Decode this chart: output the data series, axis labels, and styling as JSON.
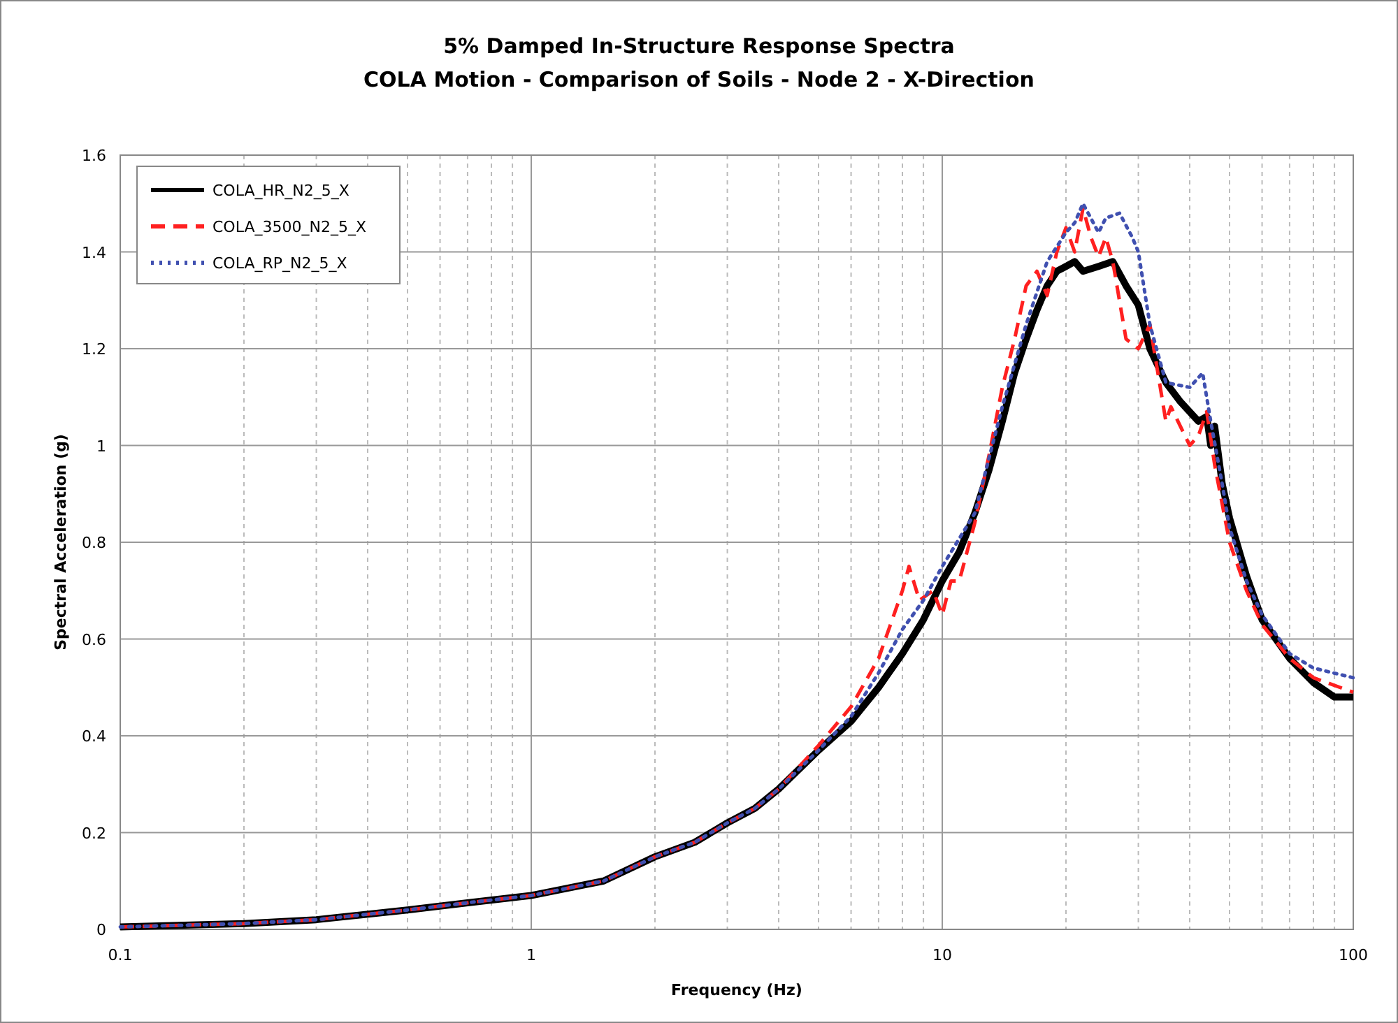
{
  "chart_data": {
    "type": "line",
    "title": "5% Damped In-Structure Response Spectra",
    "subtitle": "COLA Motion - Comparison of Soils - Node 2 - X-Direction",
    "xlabel": "Frequency (Hz)",
    "ylabel": "Spectral Acceleration (g)",
    "log": "x",
    "grid": true,
    "legend": "top left",
    "xlim": [
      0.1,
      100
    ],
    "xticks": [
      0.1,
      1,
      10,
      100
    ],
    "ylim": [
      0,
      1.6
    ],
    "yticks": [
      0,
      0.2,
      0.4,
      0.6,
      0.8,
      1,
      1.2,
      1.4,
      1.6
    ],
    "series": [
      {
        "name": "COLA_HR_N2_5_X",
        "color": "#000000",
        "line_style": "solid",
        "x": [
          0.1,
          0.2,
          0.3,
          0.5,
          0.7,
          1,
          1.5,
          2,
          2.5,
          3,
          3.5,
          4,
          5,
          6,
          7,
          8,
          9,
          10,
          11,
          12,
          13,
          14,
          15,
          16,
          17,
          18,
          19,
          20,
          21,
          22,
          24,
          26,
          28,
          30,
          32,
          35,
          38,
          42,
          44,
          45,
          46,
          48,
          50,
          55,
          60,
          70,
          80,
          90,
          100
        ],
        "values": [
          0.005,
          0.012,
          0.02,
          0.04,
          0.055,
          0.07,
          0.1,
          0.15,
          0.18,
          0.22,
          0.25,
          0.29,
          0.37,
          0.43,
          0.5,
          0.57,
          0.64,
          0.72,
          0.78,
          0.86,
          0.95,
          1.05,
          1.15,
          1.22,
          1.28,
          1.33,
          1.36,
          1.37,
          1.38,
          1.36,
          1.37,
          1.38,
          1.33,
          1.29,
          1.2,
          1.13,
          1.09,
          1.05,
          1.06,
          1.0,
          1.04,
          0.92,
          0.85,
          0.73,
          0.64,
          0.56,
          0.51,
          0.48,
          0.48
        ]
      },
      {
        "name": "COLA_3500_N2_5_X",
        "color": "#ff2020",
        "line_style": "dashed",
        "x": [
          0.1,
          0.2,
          0.3,
          0.5,
          0.7,
          1,
          1.5,
          2,
          2.5,
          3,
          3.5,
          4,
          5,
          6,
          7,
          8,
          8.3,
          8.8,
          9.5,
          10,
          10.5,
          11,
          12,
          13,
          14,
          15,
          16,
          17,
          18,
          19,
          20,
          21,
          22,
          23,
          24,
          25,
          26,
          28,
          30,
          32,
          35,
          36,
          40,
          42,
          44,
          46,
          50,
          55,
          60,
          70,
          80,
          100
        ],
        "values": [
          0.005,
          0.012,
          0.02,
          0.04,
          0.055,
          0.07,
          0.1,
          0.15,
          0.18,
          0.22,
          0.25,
          0.29,
          0.38,
          0.46,
          0.56,
          0.7,
          0.75,
          0.68,
          0.7,
          0.65,
          0.72,
          0.72,
          0.84,
          0.98,
          1.12,
          1.22,
          1.33,
          1.36,
          1.31,
          1.4,
          1.45,
          1.4,
          1.49,
          1.43,
          1.39,
          1.43,
          1.38,
          1.22,
          1.2,
          1.25,
          1.05,
          1.08,
          1.0,
          1.02,
          1.07,
          0.96,
          0.8,
          0.7,
          0.63,
          0.56,
          0.52,
          0.49
        ]
      },
      {
        "name": "COLA_RP_N2_5_X",
        "color": "#4050b0",
        "line_style": "dotted",
        "x": [
          0.1,
          0.2,
          0.3,
          0.5,
          0.7,
          1,
          1.5,
          2,
          2.5,
          3,
          3.5,
          4,
          5,
          6,
          7,
          8,
          9,
          10,
          12,
          14,
          16,
          18,
          20,
          21,
          22,
          24,
          25,
          27,
          29,
          30,
          32,
          35,
          40,
          43,
          45,
          48,
          50,
          55,
          60,
          70,
          80,
          100
        ],
        "values": [
          0.005,
          0.012,
          0.02,
          0.04,
          0.055,
          0.07,
          0.1,
          0.15,
          0.18,
          0.22,
          0.25,
          0.29,
          0.37,
          0.44,
          0.53,
          0.62,
          0.68,
          0.75,
          0.86,
          1.08,
          1.25,
          1.38,
          1.44,
          1.46,
          1.5,
          1.44,
          1.47,
          1.48,
          1.43,
          1.4,
          1.25,
          1.13,
          1.12,
          1.15,
          1.05,
          0.92,
          0.83,
          0.72,
          0.65,
          0.57,
          0.54,
          0.52
        ]
      }
    ]
  }
}
